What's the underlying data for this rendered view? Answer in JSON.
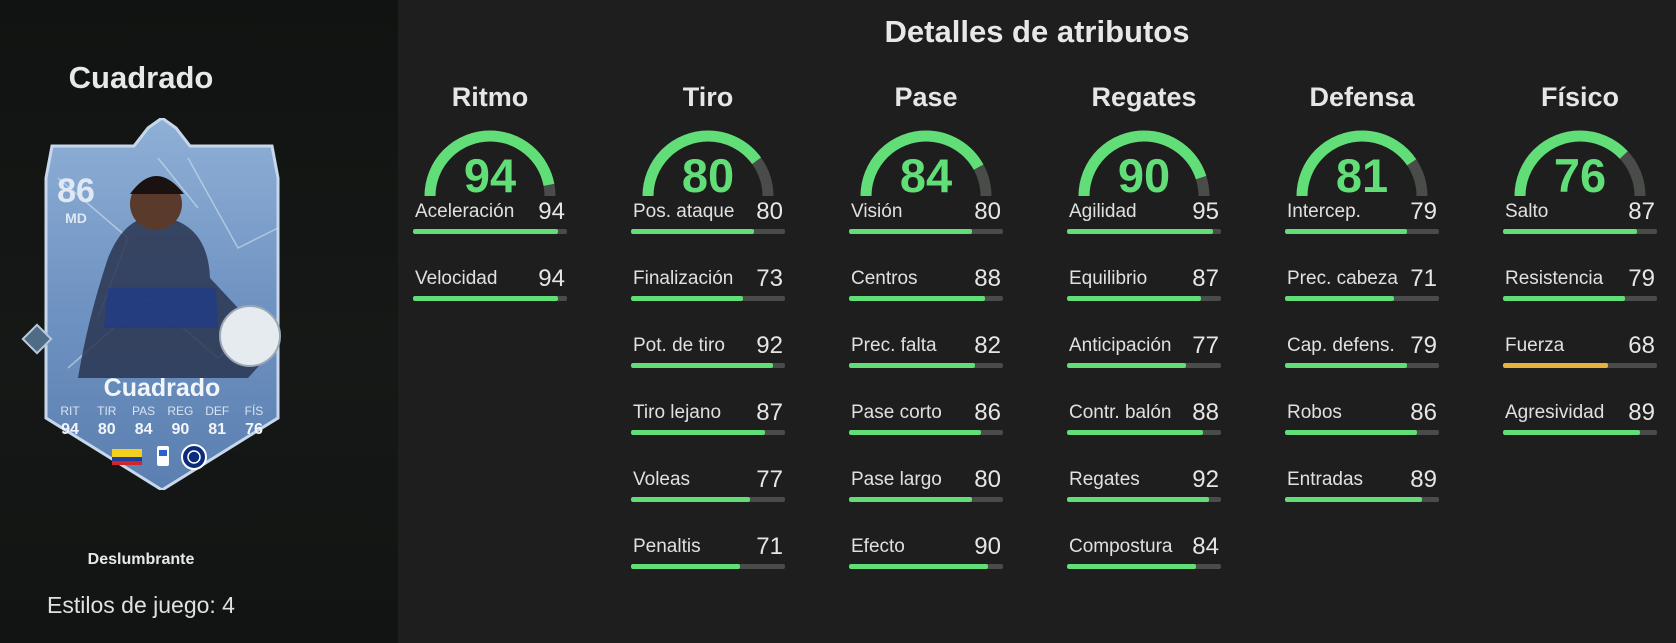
{
  "player": {
    "name": "Cuadrado",
    "card": {
      "rating": "86",
      "position": "MD",
      "name": "Cuadrado",
      "stats": [
        {
          "label": "RIT",
          "value": "94"
        },
        {
          "label": "TIR",
          "value": "80"
        },
        {
          "label": "PAS",
          "value": "84"
        },
        {
          "label": "REG",
          "value": "90"
        },
        {
          "label": "DEF",
          "value": "81"
        },
        {
          "label": "FÍS",
          "value": "76"
        }
      ]
    },
    "card_type": "Deslumbrante",
    "playstyles": "Estilos de juego: 4"
  },
  "section_title": "Detalles de atributos",
  "colors": {
    "green": "#61de78",
    "yellow": "#e8b33d",
    "track": "#4a4c4a"
  },
  "categories": [
    {
      "title": "Ritmo",
      "value": 94,
      "attributes": [
        {
          "label": "Aceleración",
          "value": 94
        },
        {
          "label": "Velocidad",
          "value": 94
        }
      ]
    },
    {
      "title": "Tiro",
      "value": 80,
      "attributes": [
        {
          "label": "Pos. ataque",
          "value": 80
        },
        {
          "label": "Finalización",
          "value": 73
        },
        {
          "label": "Pot. de tiro",
          "value": 92
        },
        {
          "label": "Tiro lejano",
          "value": 87
        },
        {
          "label": "Voleas",
          "value": 77
        },
        {
          "label": "Penaltis",
          "value": 71
        }
      ]
    },
    {
      "title": "Pase",
      "value": 84,
      "attributes": [
        {
          "label": "Visión",
          "value": 80
        },
        {
          "label": "Centros",
          "value": 88
        },
        {
          "label": "Prec. falta",
          "value": 82
        },
        {
          "label": "Pase corto",
          "value": 86
        },
        {
          "label": "Pase largo",
          "value": 80
        },
        {
          "label": "Efecto",
          "value": 90
        }
      ]
    },
    {
      "title": "Regates",
      "value": 90,
      "attributes": [
        {
          "label": "Agilidad",
          "value": 95
        },
        {
          "label": "Equilibrio",
          "value": 87
        },
        {
          "label": "Anticipación",
          "value": 77
        },
        {
          "label": "Contr. balón",
          "value": 88
        },
        {
          "label": "Regates",
          "value": 92
        },
        {
          "label": "Compostura",
          "value": 84
        }
      ]
    },
    {
      "title": "Defensa",
      "value": 81,
      "attributes": [
        {
          "label": "Intercep.",
          "value": 79
        },
        {
          "label": "Prec. cabeza",
          "value": 71
        },
        {
          "label": "Cap. defens.",
          "value": 79
        },
        {
          "label": "Robos",
          "value": 86
        },
        {
          "label": "Entradas",
          "value": 89
        }
      ]
    },
    {
      "title": "Físico",
      "value": 76,
      "attributes": [
        {
          "label": "Salto",
          "value": 87
        },
        {
          "label": "Resistencia",
          "value": 79
        },
        {
          "label": "Fuerza",
          "value": 68
        },
        {
          "label": "Agresividad",
          "value": 89
        }
      ]
    }
  ]
}
